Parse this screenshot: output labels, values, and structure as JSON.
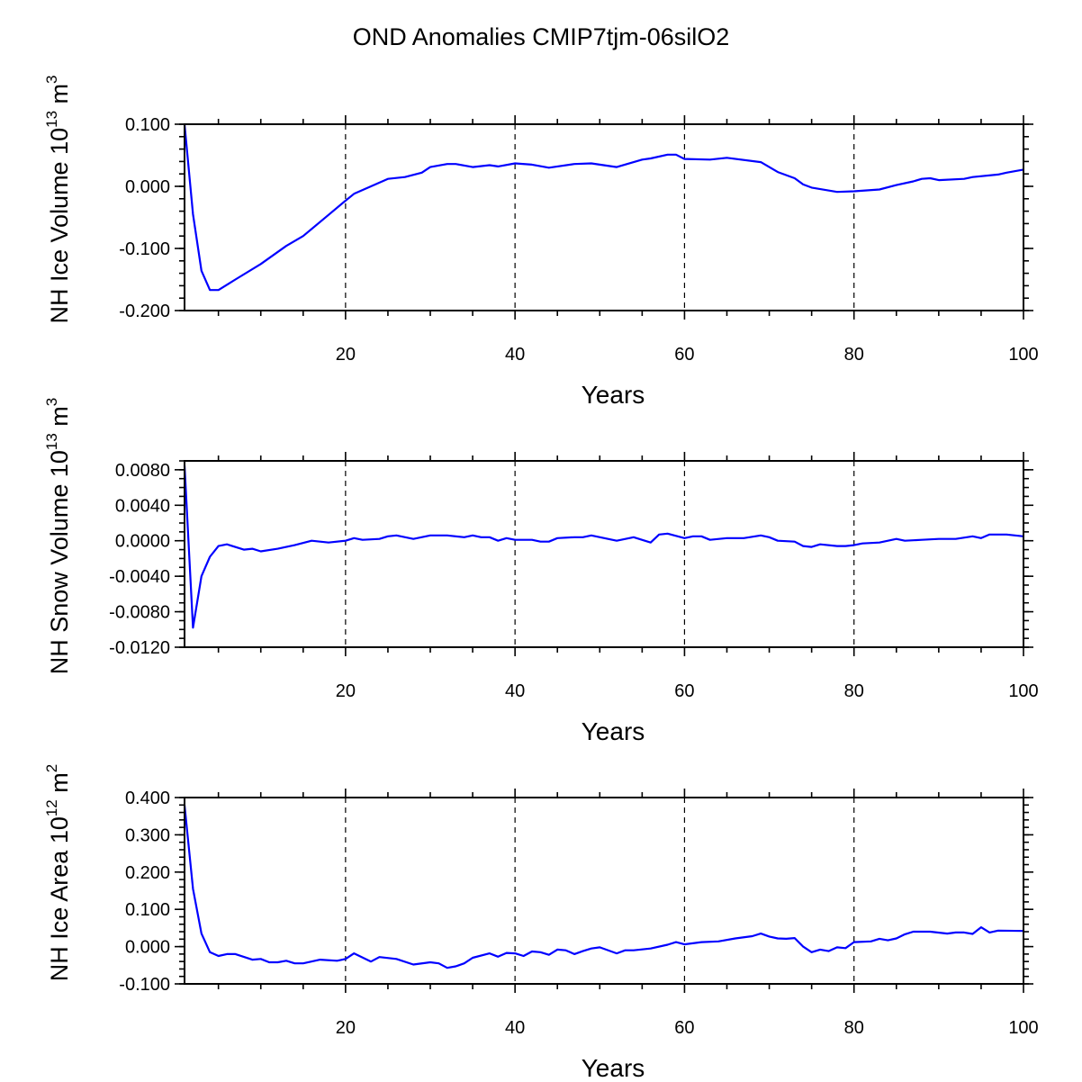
{
  "title": "OND Anomalies CMIP7tjm-06silO2",
  "colors": {
    "line": "#0000ff",
    "axis": "#000000"
  },
  "chart_data": [
    {
      "type": "line",
      "xlabel": "Years",
      "ylabel": {
        "text": "NH Ice Volume 10",
        "exp": "13",
        "unit": " m",
        "unit_exp": "3"
      },
      "xlim": [
        1,
        100
      ],
      "ylim": [
        -0.2,
        0.1
      ],
      "xticks": [
        20,
        40,
        60,
        80,
        100
      ],
      "xticklabels": [
        "20",
        "40",
        "60",
        "80",
        "100"
      ],
      "yticks": [
        0.1,
        0.0,
        -0.1,
        -0.2
      ],
      "yticklabels": [
        "0.100",
        "0.000",
        "-0.100",
        "-0.200"
      ],
      "yminor_step": 0.02,
      "grid_x": [
        20,
        40,
        60,
        80
      ],
      "x": [
        1,
        2,
        3,
        4,
        5,
        7,
        10,
        13,
        15,
        18,
        20,
        21,
        23,
        25,
        27,
        29,
        30,
        32,
        33,
        35,
        37,
        38,
        40,
        42,
        44,
        47,
        49,
        52,
        55,
        56,
        58,
        59,
        60,
        63,
        65,
        69,
        71,
        73,
        74,
        75,
        78,
        80,
        83,
        85,
        87,
        88,
        89,
        90,
        93,
        94,
        97,
        98,
        100
      ],
      "y": [
        0.1,
        -0.045,
        -0.136,
        -0.167,
        -0.167,
        -0.15,
        -0.125,
        -0.096,
        -0.08,
        -0.046,
        -0.023,
        -0.012,
        0.0,
        0.012,
        0.015,
        0.022,
        0.031,
        0.036,
        0.036,
        0.031,
        0.034,
        0.032,
        0.037,
        0.035,
        0.03,
        0.036,
        0.037,
        0.031,
        0.043,
        0.045,
        0.051,
        0.051,
        0.044,
        0.043,
        0.046,
        0.039,
        0.023,
        0.013,
        0.003,
        -0.002,
        -0.009,
        -0.008,
        -0.005,
        0.002,
        0.008,
        0.012,
        0.013,
        0.01,
        0.012,
        0.015,
        0.019,
        0.022,
        0.027
      ]
    },
    {
      "type": "line",
      "xlabel": "Years",
      "ylabel": {
        "text": "NH Snow Volume 10",
        "exp": "13",
        "unit": " m",
        "unit_exp": "3"
      },
      "xlim": [
        1,
        100
      ],
      "ylim": [
        -0.012,
        0.009
      ],
      "xticks": [
        20,
        40,
        60,
        80,
        100
      ],
      "xticklabels": [
        "20",
        "40",
        "60",
        "80",
        "100"
      ],
      "yticks": [
        0.008,
        0.004,
        0.0,
        -0.004,
        -0.008,
        -0.012
      ],
      "yticklabels": [
        "0.0080",
        "0.0040",
        "0.0000",
        "-0.0040",
        "-0.0080",
        "-0.0120"
      ],
      "yminor_step": 0.001,
      "grid_x": [
        20,
        40,
        60,
        80
      ],
      "x": [
        1,
        2,
        3,
        4,
        5,
        6,
        8,
        9,
        10,
        12,
        14,
        16,
        18,
        20,
        21,
        22,
        24,
        25,
        26,
        28,
        30,
        32,
        34,
        35,
        36,
        37,
        38,
        39,
        40,
        42,
        43,
        44,
        45,
        47,
        48,
        49,
        52,
        54,
        56,
        57,
        58,
        60,
        61,
        62,
        63,
        65,
        67,
        69,
        70,
        71,
        73,
        74,
        75,
        76,
        78,
        79,
        80,
        81,
        83,
        85,
        86,
        88,
        90,
        92,
        94,
        95,
        96,
        98,
        100
      ],
      "y": [
        0.0085,
        -0.0098,
        -0.004,
        -0.0018,
        -0.0006,
        -0.0004,
        -0.001,
        -0.0009,
        -0.0012,
        -0.0009,
        -0.0005,
        0.0,
        -0.0002,
        0.0,
        0.0003,
        0.0001,
        0.0002,
        0.0005,
        0.0006,
        0.0002,
        0.0006,
        0.0006,
        0.0004,
        0.0006,
        0.0004,
        0.0004,
        0.0,
        0.0003,
        0.0001,
        0.0001,
        -0.0001,
        -0.0001,
        0.0003,
        0.0004,
        0.0004,
        0.0006,
        0.0,
        0.0004,
        -0.0002,
        0.0007,
        0.0008,
        0.0003,
        0.0005,
        0.0005,
        0.0001,
        0.0003,
        0.0003,
        0.0006,
        0.0004,
        0.0,
        -0.0001,
        -0.0006,
        -0.0007,
        -0.0004,
        -0.0006,
        -0.0006,
        -0.0005,
        -0.0003,
        -0.0002,
        0.0002,
        0.0,
        0.0001,
        0.0002,
        0.0002,
        0.0005,
        0.0003,
        0.0007,
        0.0007,
        0.0005
      ]
    },
    {
      "type": "line",
      "xlabel": "Years",
      "ylabel": {
        "text": "NH Ice Area 10",
        "exp": "12",
        "unit": " m",
        "unit_exp": "2"
      },
      "xlim": [
        1,
        100
      ],
      "ylim": [
        -0.1,
        0.4
      ],
      "xticks": [
        20,
        40,
        60,
        80,
        100
      ],
      "xticklabels": [
        "20",
        "40",
        "60",
        "80",
        "100"
      ],
      "yticks": [
        0.4,
        0.3,
        0.2,
        0.1,
        0.0,
        -0.1
      ],
      "yticklabels": [
        "0.400",
        "0.300",
        "0.200",
        "0.100",
        "0.000",
        "-0.100"
      ],
      "yminor_step": 0.02,
      "grid_x": [
        20,
        40,
        60,
        80
      ],
      "x": [
        1,
        2,
        3,
        4,
        5,
        6,
        7,
        9,
        10,
        11,
        12,
        13,
        14,
        15,
        17,
        19,
        20,
        21,
        23,
        24,
        26,
        28,
        30,
        31,
        32,
        33,
        34,
        35,
        37,
        38,
        39,
        40,
        41,
        42,
        43,
        44,
        45,
        46,
        47,
        48,
        49,
        50,
        52,
        53,
        54,
        56,
        58,
        59,
        60,
        62,
        64,
        66,
        68,
        69,
        70,
        71,
        72,
        73,
        74,
        75,
        76,
        77,
        78,
        79,
        80,
        82,
        83,
        84,
        85,
        86,
        87,
        89,
        91,
        92,
        93,
        94,
        95,
        96,
        97,
        100
      ],
      "y": [
        0.38,
        0.155,
        0.035,
        -0.015,
        -0.025,
        -0.02,
        -0.02,
        -0.035,
        -0.033,
        -0.042,
        -0.042,
        -0.038,
        -0.045,
        -0.045,
        -0.035,
        -0.038,
        -0.033,
        -0.018,
        -0.04,
        -0.028,
        -0.033,
        -0.048,
        -0.042,
        -0.045,
        -0.057,
        -0.053,
        -0.045,
        -0.03,
        -0.018,
        -0.027,
        -0.017,
        -0.018,
        -0.025,
        -0.013,
        -0.015,
        -0.022,
        -0.008,
        -0.01,
        -0.02,
        -0.012,
        -0.005,
        -0.002,
        -0.018,
        -0.01,
        -0.01,
        -0.005,
        0.005,
        0.012,
        0.006,
        0.012,
        0.014,
        0.022,
        0.028,
        0.035,
        0.027,
        0.022,
        0.021,
        0.023,
        0.0,
        -0.015,
        -0.008,
        -0.012,
        -0.002,
        -0.004,
        0.012,
        0.014,
        0.021,
        0.017,
        0.022,
        0.033,
        0.04,
        0.04,
        0.035,
        0.038,
        0.038,
        0.034,
        0.052,
        0.038,
        0.043,
        0.042
      ]
    }
  ]
}
